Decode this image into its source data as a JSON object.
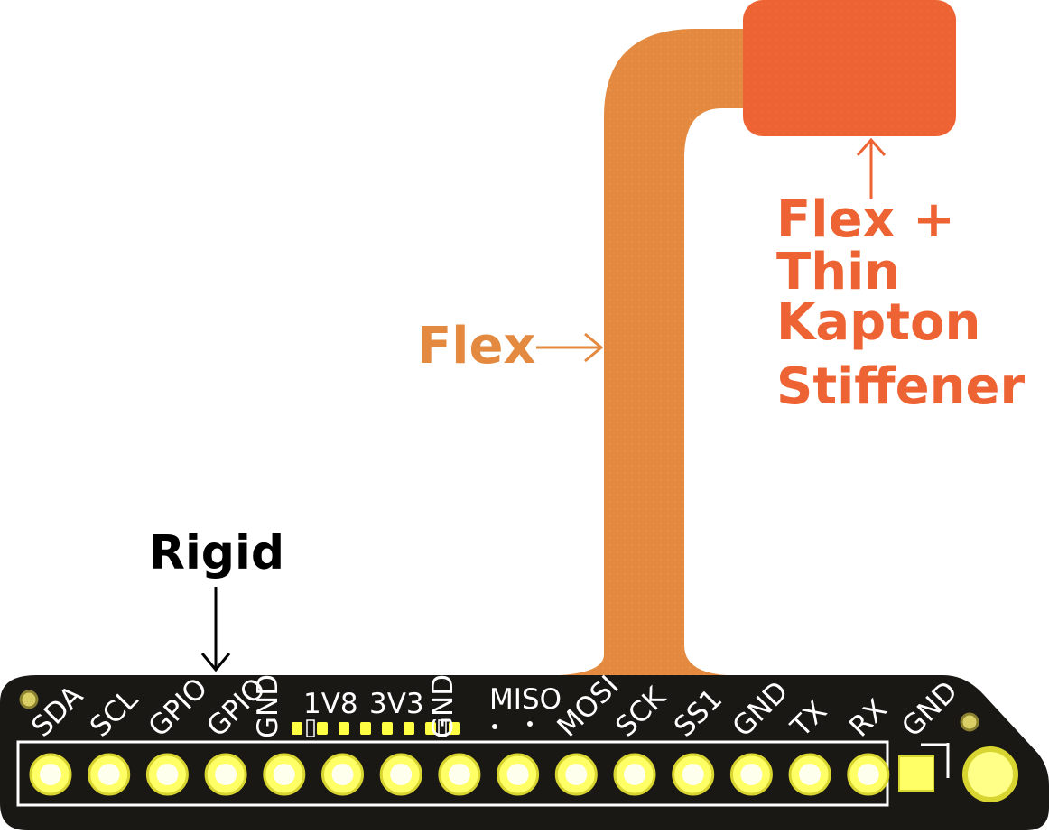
{
  "colors": {
    "flex": "#E38A40",
    "stiffener": "#EE6333",
    "board": "#191815",
    "pad": "#FFFF66",
    "pad_ring": "#EEEE44",
    "silkscreen": "#FFFFFF",
    "rigid_label": "#000000"
  },
  "labels": {
    "rigid": "Rigid",
    "flex": "Flex",
    "stiffener_lines": [
      "Flex +",
      "Thin",
      "Kapton",
      "Stiffener"
    ]
  },
  "pins": [
    "SDA",
    "SCL",
    "GPIO",
    "GPIO",
    "GND",
    "",
    "",
    "GND",
    "",
    "MOSI",
    "SCK",
    "SS1",
    "GND",
    "TX",
    "RX",
    "GND"
  ],
  "board_text": {
    "jumper_1": "1V8",
    "jumper_2": "3V3",
    "miso": "MISO"
  },
  "icons": {
    "arrow": "arrow-icon",
    "mount_hole": "mount-hole-icon",
    "square_pad": "square-pad-icon"
  }
}
